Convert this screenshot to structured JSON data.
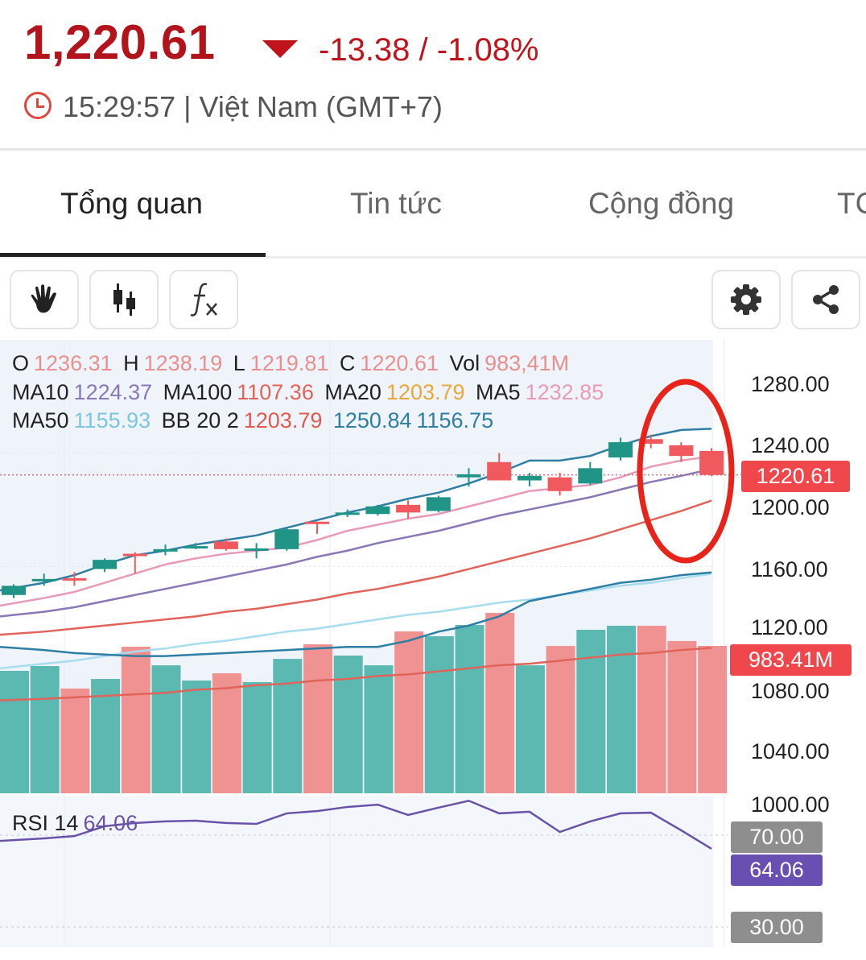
{
  "header": {
    "price": "1,220.61",
    "change": "-13.38 / -1.08%",
    "time": "15:29:57 | Việt Nam (GMT+7)",
    "direction": "down",
    "colors": {
      "price": "#b3141b",
      "down": "#c0141c"
    }
  },
  "tabs": [
    {
      "label": "Tổng quan",
      "active": true
    },
    {
      "label": "Tin tức",
      "active": false
    },
    {
      "label": "Cộng đồng",
      "active": false
    },
    {
      "label": "TC",
      "active": false
    }
  ],
  "toolbar": {
    "left": [
      "hand-icon",
      "candlestick-icon",
      "function-icon"
    ],
    "right": [
      "gear-icon",
      "share-icon"
    ]
  },
  "legend": {
    "ohlc": {
      "o_label": "O",
      "o": "1236.31",
      "h_label": "H",
      "h": "1238.19",
      "l_label": "L",
      "l": "1219.81",
      "c_label": "C",
      "c": "1220.61",
      "vol_label": "Vol",
      "vol": "983,41M"
    },
    "ma": {
      "ma10_label": "MA10",
      "ma10": "1224.37",
      "ma100_label": "MA100",
      "ma100": "1107.36",
      "ma20_label": "MA20",
      "ma20": "1203.79",
      "ma5_label": "MA5",
      "ma5": "1232.85",
      "ma50_label": "MA50",
      "ma50": "1155.93"
    },
    "bb": {
      "label": "BB 20 2",
      "mid": "1203.79",
      "upper": "1250.84",
      "lower": "1156.75"
    },
    "rsi": {
      "label": "RSI 14",
      "value": "64.06"
    }
  },
  "axis": {
    "price_ticks": [
      "1280.00",
      "1240.00",
      "1200.00",
      "1160.00",
      "1120.00",
      "1080.00",
      "1040.00",
      "1000.00"
    ],
    "last_price_badge": "1220.61",
    "volume_badge": "983.41M",
    "rsi_upper": "70.00",
    "rsi_value": "64.06",
    "rsi_lower": "30.00"
  },
  "colors": {
    "up": "#1f9487",
    "down": "#f05a5e",
    "vol_up": "#5cb9b2",
    "vol_down": "#f09292",
    "ma5": "#e89ab8",
    "ma10": "#8a78b6",
    "ma20": "#e0645a",
    "ma50": "#a8dcef",
    "ma100": "#e0645a",
    "bb": "#2f7ea3",
    "rsi": "#6a52a8",
    "annotation": "#e8231a"
  },
  "chart_data": {
    "type": "candlestick",
    "candles": [
      {
        "o": 1142,
        "h": 1149,
        "l": 1140,
        "c": 1148
      },
      {
        "o": 1152,
        "h": 1156,
        "l": 1148,
        "c": 1152.5
      },
      {
        "o": 1153,
        "h": 1157,
        "l": 1148,
        "c": 1152
      },
      {
        "o": 1159,
        "h": 1166,
        "l": 1157,
        "c": 1165
      },
      {
        "o": 1169,
        "h": 1170,
        "l": 1156,
        "c": 1168
      },
      {
        "o": 1171,
        "h": 1175,
        "l": 1168,
        "c": 1172
      },
      {
        "o": 1173,
        "h": 1176,
        "l": 1172,
        "c": 1174
      },
      {
        "o": 1177,
        "h": 1179,
        "l": 1171,
        "c": 1172
      },
      {
        "o": 1172,
        "h": 1176,
        "l": 1166,
        "c": 1172.5
      },
      {
        "o": 1172,
        "h": 1186,
        "l": 1171,
        "c": 1185
      },
      {
        "o": 1190,
        "h": 1190,
        "l": 1182,
        "c": 1189
      },
      {
        "o": 1195,
        "h": 1198,
        "l": 1193,
        "c": 1196
      },
      {
        "o": 1195,
        "h": 1201,
        "l": 1194,
        "c": 1200
      },
      {
        "o": 1201,
        "h": 1204,
        "l": 1192,
        "c": 1196
      },
      {
        "o": 1197,
        "h": 1207,
        "l": 1196,
        "c": 1206
      },
      {
        "o": 1219,
        "h": 1225,
        "l": 1213,
        "c": 1221
      },
      {
        "o": 1229,
        "h": 1235,
        "l": 1217,
        "c": 1217
      },
      {
        "o": 1217,
        "h": 1222,
        "l": 1213,
        "c": 1220
      },
      {
        "o": 1219,
        "h": 1222,
        "l": 1207,
        "c": 1210
      },
      {
        "o": 1215,
        "h": 1229,
        "l": 1214,
        "c": 1225
      },
      {
        "o": 1232,
        "h": 1245,
        "l": 1230,
        "c": 1242
      },
      {
        "o": 1244,
        "h": 1247,
        "l": 1238,
        "c": 1241
      },
      {
        "o": 1240,
        "h": 1242,
        "l": 1229,
        "c": 1233
      },
      {
        "o": 1236.31,
        "h": 1238.19,
        "l": 1219.81,
        "c": 1220.61
      }
    ],
    "volume_millions": [
      817,
      849,
      699,
      763,
      978,
      854,
      752,
      801,
      742,
      897,
      994,
      919,
      854,
      1080,
      1048,
      1123,
      1204,
      854,
      983,
      1091,
      1118,
      1118,
      1016,
      983.41
    ],
    "ma5": [
      1135,
      1140,
      1144,
      1150,
      1156,
      1162,
      1166,
      1169,
      1171,
      1173,
      1178,
      1184,
      1188,
      1192,
      1195,
      1200,
      1205,
      1210,
      1212,
      1214,
      1219,
      1226,
      1230,
      1232.85
    ],
    "ma10": [
      1128,
      1131,
      1134,
      1138,
      1142,
      1146,
      1150,
      1154,
      1158,
      1162,
      1167,
      1171,
      1176,
      1180,
      1184,
      1189,
      1194,
      1198,
      1202,
      1206,
      1211,
      1216,
      1220,
      1224.37
    ],
    "ma20": [
      1116,
      1118,
      1120,
      1122,
      1124,
      1126,
      1128,
      1131,
      1133,
      1136,
      1139,
      1143,
      1146,
      1150,
      1154,
      1159,
      1164,
      1169,
      1174,
      1179,
      1185,
      1191,
      1197,
      1203.79
    ],
    "ma50": [
      1094,
      1097,
      1099,
      1102,
      1105,
      1107,
      1110,
      1112,
      1115,
      1118,
      1120,
      1123,
      1126,
      1129,
      1131,
      1134,
      1137,
      1139,
      1142,
      1145,
      1148,
      1150,
      1153,
      1155.93
    ],
    "ma100": [
      1073,
      1074,
      1075,
      1076,
      1077,
      1078,
      1080,
      1081,
      1083,
      1084,
      1086,
      1087,
      1089,
      1090,
      1092,
      1094,
      1096,
      1097,
      1099,
      1101,
      1103,
      1104,
      1106,
      1107.36
    ],
    "bb_upper": [
      1145,
      1150,
      1155,
      1162,
      1168,
      1171,
      1175,
      1178,
      1181,
      1186,
      1191,
      1196,
      1200,
      1205,
      1209,
      1215,
      1222,
      1230,
      1230,
      1233,
      1240,
      1246,
      1250,
      1250.84
    ],
    "bb_lower": [
      1108,
      1106,
      1104,
      1103,
      1102,
      1102,
      1103,
      1104,
      1105,
      1106,
      1107,
      1108,
      1108,
      1112,
      1118,
      1122,
      1128,
      1138,
      1142,
      1146,
      1150,
      1152,
      1155,
      1156.75
    ],
    "rsi": [
      67.5,
      68.6,
      69.6,
      73.9,
      75.3,
      76,
      76.3,
      75.3,
      74.9,
      79.5,
      80.5,
      82.3,
      83.3,
      78.8,
      82,
      85,
      79.5,
      80.2,
      71.4,
      76,
      79.5,
      79.8,
      72.1,
      64.06
    ],
    "price_range": [
      1000,
      1280
    ],
    "rsi_levels": [
      30,
      70
    ],
    "last_price": 1220.61
  }
}
